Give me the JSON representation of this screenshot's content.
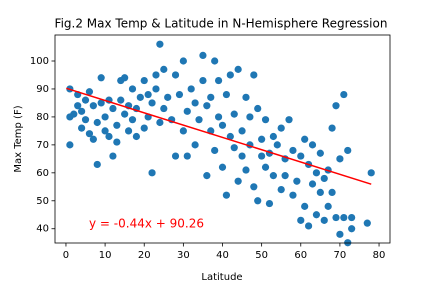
{
  "chart_data": {
    "type": "scatter",
    "title": "Fig.2 Max Temp & Latitude in N-Hemisphere Regression",
    "xlabel": "Latitude",
    "ylabel": "Max Temp (F)",
    "annotation": "y = -0.44x + 90.26",
    "xlim": [
      -2.8,
      82.8
    ],
    "ylim": [
      34.9,
      109.3
    ],
    "xticks": [
      0,
      10,
      20,
      30,
      40,
      50,
      60,
      70,
      80
    ],
    "yticks": [
      40,
      50,
      60,
      70,
      80,
      90,
      100
    ],
    "grid": false,
    "series": [
      {
        "color": "#1f77b4",
        "x": [
          1,
          1,
          1,
          2,
          3,
          3,
          4,
          4,
          5,
          5,
          6,
          6,
          7,
          7,
          8,
          8,
          9,
          9,
          10,
          10,
          11,
          11,
          12,
          12,
          13,
          13,
          14,
          14,
          15,
          15,
          16,
          16,
          17,
          17,
          18,
          18,
          19,
          20,
          20,
          21,
          21,
          22,
          22,
          23,
          23,
          24,
          24,
          25,
          25,
          26,
          27,
          28,
          28,
          29,
          30,
          30,
          31,
          31,
          32,
          33,
          33,
          34,
          35,
          35,
          36,
          36,
          37,
          37,
          38,
          38,
          39,
          39,
          40,
          40,
          41,
          41,
          42,
          42,
          43,
          43,
          44,
          44,
          45,
          45,
          46,
          46,
          47,
          47,
          48,
          48,
          49,
          49,
          50,
          50,
          51,
          51,
          52,
          52,
          53,
          53,
          54,
          55,
          55,
          56,
          56,
          57,
          58,
          58,
          59,
          60,
          60,
          61,
          61,
          62,
          62,
          63,
          63,
          64,
          64,
          65,
          65,
          66,
          66,
          67,
          67,
          68,
          68,
          69,
          69,
          70,
          70,
          71,
          71,
          72,
          72,
          73,
          73,
          77,
          78
        ],
        "values": [
          80,
          70,
          90,
          81,
          84,
          88,
          82,
          76,
          79,
          86,
          74,
          89,
          72,
          84,
          78,
          63,
          94,
          85,
          75,
          80,
          86,
          73,
          83,
          66,
          71,
          77,
          93,
          86,
          81,
          94,
          75,
          84,
          79,
          90,
          83,
          73,
          87,
          93,
          76,
          80,
          88,
          60,
          85,
          95,
          90,
          106,
          78,
          97,
          83,
          87,
          79,
          95,
          66,
          88,
          75,
          100,
          82,
          66,
          90,
          70,
          85,
          79,
          102,
          93,
          84,
          59,
          75,
          87,
          68,
          100,
          93,
          80,
          77,
          62,
          88,
          52,
          95,
          73,
          69,
          81,
          97,
          57,
          75,
          66,
          87,
          61,
          80,
          70,
          95,
          55,
          83,
          50,
          66,
          72,
          62,
          79,
          49,
          67,
          73,
          59,
          70,
          54,
          76,
          65,
          59,
          79,
          68,
          52,
          57,
          43,
          66,
          48,
          72,
          41,
          63,
          70,
          56,
          45,
          60,
          53,
          67,
          43,
          58,
          61,
          48,
          76,
          53,
          84,
          44,
          65,
          38,
          88,
          44,
          35,
          68,
          40,
          44,
          42,
          60
        ]
      }
    ],
    "regression": {
      "color": "#ff0000",
      "x": [
        0.1,
        78
      ],
      "values": [
        90.22,
        55.94
      ]
    }
  }
}
